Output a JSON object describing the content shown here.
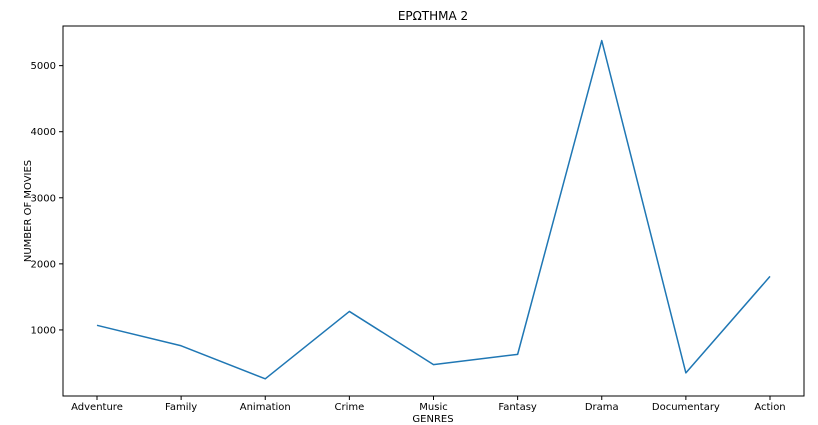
{
  "chart_data": {
    "type": "line",
    "title": "ΕΡΩΤΗΜΑ 2",
    "xlabel": "GENRES",
    "ylabel": "NUMBER OF MOVIES",
    "categories": [
      "Adventure",
      "Family",
      "Animation",
      "Crime",
      "Music",
      "Fantasy",
      "Drama",
      "Documentary",
      "Action"
    ],
    "series": [
      {
        "values": [
          1070,
          760,
          260,
          1280,
          475,
          630,
          5380,
          350,
          1810
        ]
      }
    ],
    "ylim": [
      0,
      5600
    ],
    "yticks": [
      1000,
      2000,
      3000,
      4000,
      5000
    ],
    "grid": false,
    "line_color": "#1f77b4"
  }
}
